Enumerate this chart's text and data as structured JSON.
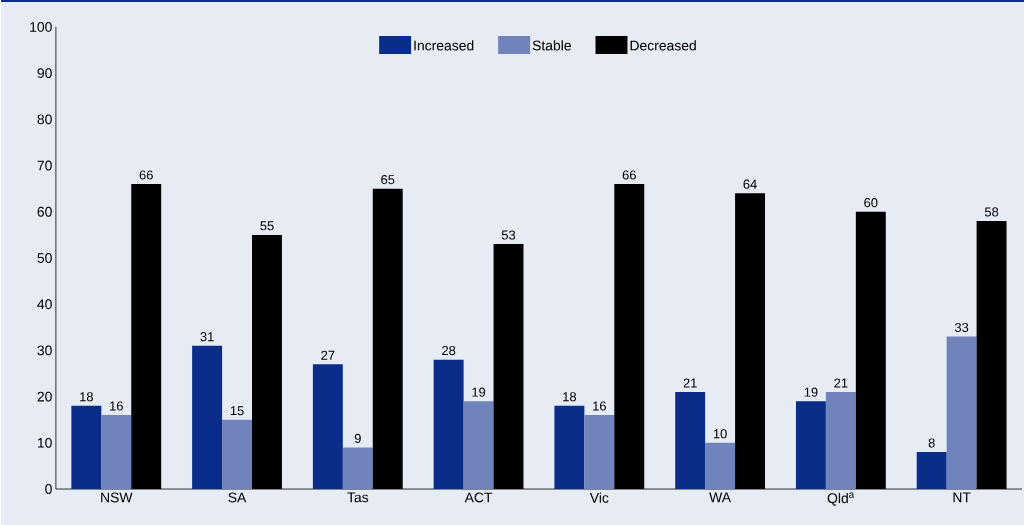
{
  "chart_data": {
    "type": "bar",
    "categories": [
      "NSW",
      "SA",
      "Tas",
      "ACT",
      "Vic",
      "WA",
      "Qld$^{a}$",
      "NT"
    ],
    "series": [
      {
        "name": "Increased",
        "color": "#0b2d8a",
        "values": [
          18,
          31,
          27,
          28,
          18,
          21,
          19,
          8
        ]
      },
      {
        "name": "Stable",
        "color": "#7183bb",
        "values": [
          16,
          15,
          9,
          19,
          16,
          10,
          21,
          33
        ]
      },
      {
        "name": "Decreased",
        "color": "#000000",
        "values": [
          66,
          55,
          65,
          53,
          66,
          64,
          60,
          58
        ]
      }
    ],
    "ylim": [
      0,
      100
    ],
    "yticks": [
      0,
      10,
      20,
      30,
      40,
      50,
      60,
      70,
      80,
      90,
      100
    ],
    "legend": "top",
    "data_labels": true,
    "grid": false
  }
}
